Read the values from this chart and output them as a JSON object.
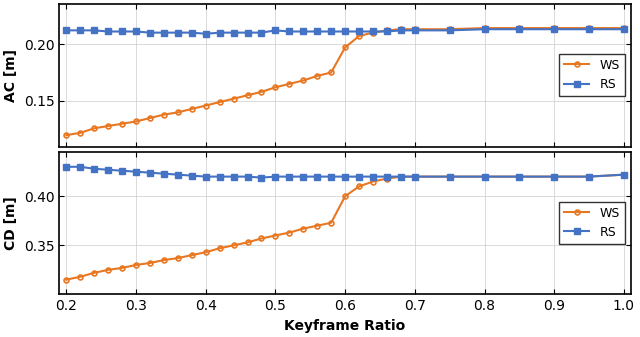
{
  "x": [
    0.2,
    0.22,
    0.24,
    0.26,
    0.28,
    0.3,
    0.32,
    0.34,
    0.36,
    0.38,
    0.4,
    0.42,
    0.44,
    0.46,
    0.48,
    0.5,
    0.52,
    0.54,
    0.56,
    0.58,
    0.6,
    0.62,
    0.64,
    0.66,
    0.68,
    0.7,
    0.75,
    0.8,
    0.85,
    0.9,
    0.95,
    1.0
  ],
  "ac_ws": [
    0.12,
    0.122,
    0.126,
    0.128,
    0.13,
    0.132,
    0.135,
    0.138,
    0.14,
    0.143,
    0.146,
    0.149,
    0.152,
    0.155,
    0.158,
    0.162,
    0.165,
    0.168,
    0.172,
    0.175,
    0.197,
    0.207,
    0.21,
    0.212,
    0.213,
    0.213,
    0.213,
    0.214,
    0.214,
    0.214,
    0.214,
    0.214
  ],
  "ac_rs": [
    0.212,
    0.212,
    0.212,
    0.211,
    0.211,
    0.211,
    0.21,
    0.21,
    0.21,
    0.21,
    0.209,
    0.21,
    0.21,
    0.21,
    0.21,
    0.212,
    0.211,
    0.211,
    0.211,
    0.211,
    0.211,
    0.211,
    0.211,
    0.211,
    0.212,
    0.212,
    0.212,
    0.213,
    0.213,
    0.213,
    0.213,
    0.213
  ],
  "cd_ws": [
    0.315,
    0.318,
    0.322,
    0.325,
    0.327,
    0.33,
    0.332,
    0.335,
    0.337,
    0.34,
    0.343,
    0.347,
    0.35,
    0.353,
    0.357,
    0.36,
    0.363,
    0.367,
    0.37,
    0.373,
    0.4,
    0.41,
    0.415,
    0.418,
    0.42,
    0.42,
    0.42,
    0.42,
    0.42,
    0.42,
    0.42,
    0.422
  ],
  "cd_rs": [
    0.43,
    0.43,
    0.428,
    0.427,
    0.426,
    0.425,
    0.424,
    0.423,
    0.422,
    0.421,
    0.42,
    0.42,
    0.42,
    0.42,
    0.419,
    0.42,
    0.42,
    0.42,
    0.42,
    0.42,
    0.42,
    0.42,
    0.42,
    0.42,
    0.42,
    0.42,
    0.42,
    0.42,
    0.42,
    0.42,
    0.42,
    0.422
  ],
  "color_ws": "#E87722",
  "color_rs": "#4472C4",
  "xlabel": "Keyframe Ratio",
  "ylabel_top": "AC [m]",
  "ylabel_bot": "CD [m]",
  "legend_ws": "WS",
  "legend_rs": "RS",
  "xlim": [
    0.19,
    1.01
  ],
  "ac_ylim": [
    0.11,
    0.235
  ],
  "cd_ylim": [
    0.3,
    0.445
  ],
  "xticks": [
    0.2,
    0.3,
    0.4,
    0.5,
    0.6,
    0.7,
    0.8,
    0.9,
    1.0
  ],
  "ac_yticks": [
    0.15,
    0.2
  ],
  "cd_yticks": [
    0.35,
    0.4
  ],
  "grid_color": "#cccccc",
  "background_color": "#ffffff"
}
